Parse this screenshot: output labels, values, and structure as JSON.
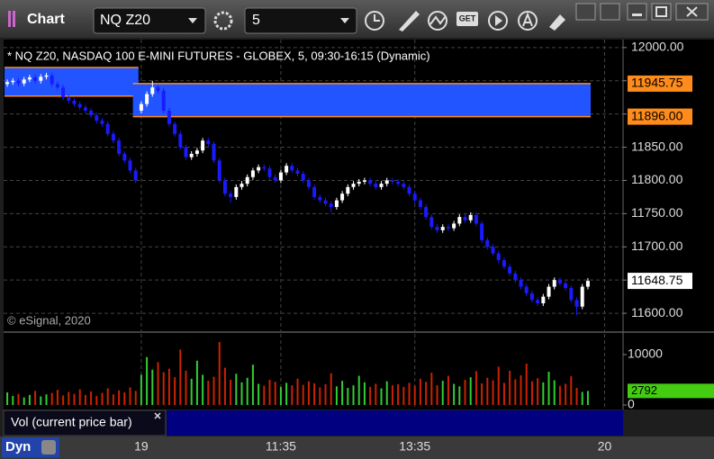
{
  "toolbar": {
    "title": "Chart",
    "symbol": "NQ Z20",
    "interval": "5",
    "get_label": "GET"
  },
  "footer": {
    "study": "Vol (current price bar)",
    "mode": "Dyn"
  },
  "chart_data": {
    "type": "candlestick",
    "title": "* NQ Z20, NASDAQ 100 E-MINI FUTURES - GLOBEX, 5, 09:30-16:15 (Dynamic)",
    "watermark": "© eSignal, 2020",
    "xlim": [
      -0.66,
      110.3
    ],
    "xticks": [
      {
        "value": 24,
        "label": "19"
      },
      {
        "value": 49,
        "label": "11:35"
      },
      {
        "value": 73,
        "label": "13:35"
      },
      {
        "value": 107,
        "label": "20"
      }
    ],
    "ylim": [
      11573,
      12012
    ],
    "yticks": [
      {
        "value": 11600,
        "label": "11600.00"
      },
      {
        "value": 11650,
        "label": "11650.00"
      },
      {
        "value": 11700,
        "label": "11700.00"
      },
      {
        "value": 11750,
        "label": "11750.00"
      },
      {
        "value": 11800,
        "label": "11800.00"
      },
      {
        "value": 11850,
        "label": "11850.00"
      },
      {
        "value": 11900,
        "label": "11900.00"
      },
      {
        "value": 11950,
        "label": "11950.00"
      },
      {
        "value": 12000,
        "label": "12000.00"
      }
    ],
    "grid": true,
    "up_color": "#ffffff",
    "down_color": "#1a1aff",
    "open": [
      11945,
      11948,
      11950,
      11946,
      11952,
      11955,
      11950,
      11956,
      11958,
      11945,
      11940,
      11925,
      11920,
      11915,
      11910,
      11905,
      11898,
      11890,
      11885,
      11870,
      11860,
      11840,
      11830,
      11815,
      11905,
      11915,
      11930,
      11940,
      11935,
      11905,
      11885,
      11870,
      11850,
      11835,
      11840,
      11845,
      11860,
      11855,
      11830,
      11800,
      11780,
      11775,
      11790,
      11795,
      11805,
      11815,
      11820,
      11818,
      11805,
      11800,
      11812,
      11822,
      11815,
      11810,
      11800,
      11790,
      11775,
      11770,
      11765,
      11760,
      11770,
      11780,
      11790,
      11795,
      11798,
      11800,
      11795,
      11790,
      11795,
      11800,
      11798,
      11795,
      11790,
      11780,
      11770,
      11760,
      11745,
      11730,
      11725,
      11730,
      11728,
      11735,
      11745,
      11740,
      11748,
      11735,
      11710,
      11700,
      11690,
      11680,
      11670,
      11660,
      11650,
      11640,
      11630,
      11620,
      11615,
      11625,
      11640,
      11650,
      11645,
      11638,
      11620,
      11610,
      11640
    ],
    "high": [
      11952,
      11954,
      11954,
      11956,
      11959,
      11959,
      11960,
      11962,
      11962,
      11949,
      11944,
      11929,
      11924,
      11919,
      11914,
      11909,
      11902,
      11894,
      11889,
      11874,
      11864,
      11844,
      11834,
      11819,
      11919,
      11934,
      11950,
      11944,
      11939,
      11909,
      11889,
      11874,
      11854,
      11844,
      11849,
      11864,
      11864,
      11859,
      11834,
      11804,
      11784,
      11794,
      11799,
      11809,
      11819,
      11824,
      11824,
      11822,
      11809,
      11816,
      11826,
      11826,
      11819,
      11814,
      11804,
      11794,
      11779,
      11774,
      11769,
      11774,
      11784,
      11794,
      11799,
      11802,
      11804,
      11804,
      11799,
      11799,
      11804,
      11804,
      11802,
      11799,
      11794,
      11784,
      11774,
      11764,
      11749,
      11734,
      11734,
      11734,
      11739,
      11749,
      11749,
      11752,
      11752,
      11739,
      11714,
      11704,
      11694,
      11684,
      11674,
      11664,
      11654,
      11644,
      11634,
      11624,
      11629,
      11644,
      11654,
      11654,
      11649,
      11642,
      11624,
      11644,
      11653
    ],
    "low": [
      11941,
      11944,
      11942,
      11942,
      11948,
      11946,
      11946,
      11952,
      11941,
      11936,
      11921,
      11916,
      11911,
      11906,
      11901,
      11894,
      11886,
      11881,
      11866,
      11856,
      11836,
      11826,
      11811,
      11796,
      11901,
      11911,
      11926,
      11931,
      11901,
      11881,
      11866,
      11846,
      11831,
      11831,
      11836,
      11841,
      11851,
      11826,
      11796,
      11776,
      11766,
      11771,
      11786,
      11791,
      11801,
      11811,
      11814,
      11801,
      11796,
      11796,
      11808,
      11811,
      11806,
      11796,
      11786,
      11771,
      11766,
      11761,
      11752,
      11756,
      11766,
      11776,
      11786,
      11791,
      11794,
      11791,
      11786,
      11786,
      11791,
      11794,
      11791,
      11786,
      11776,
      11766,
      11756,
      11741,
      11726,
      11721,
      11721,
      11724,
      11724,
      11731,
      11736,
      11736,
      11731,
      11706,
      11696,
      11686,
      11676,
      11666,
      11656,
      11646,
      11636,
      11626,
      11616,
      11611,
      11611,
      11621,
      11636,
      11641,
      11634,
      11616,
      11597,
      11606,
      11636
    ],
    "close": [
      11948,
      11950,
      11946,
      11952,
      11955,
      11950,
      11956,
      11958,
      11945,
      11940,
      11925,
      11920,
      11915,
      11910,
      11905,
      11898,
      11890,
      11885,
      11870,
      11860,
      11840,
      11830,
      11815,
      11800,
      11915,
      11930,
      11940,
      11935,
      11905,
      11885,
      11870,
      11850,
      11835,
      11840,
      11845,
      11860,
      11855,
      11830,
      11800,
      11780,
      11775,
      11790,
      11795,
      11805,
      11815,
      11820,
      11818,
      11805,
      11800,
      11812,
      11822,
      11815,
      11810,
      11800,
      11790,
      11775,
      11770,
      11765,
      11760,
      11770,
      11780,
      11790,
      11795,
      11798,
      11800,
      11795,
      11790,
      11795,
      11800,
      11798,
      11795,
      11790,
      11780,
      11770,
      11760,
      11745,
      11730,
      11725,
      11730,
      11728,
      11735,
      11745,
      11740,
      11748,
      11735,
      11710,
      11700,
      11690,
      11680,
      11670,
      11660,
      11650,
      11640,
      11630,
      11620,
      11615,
      11625,
      11640,
      11650,
      11645,
      11638,
      11620,
      11610,
      11640,
      11648.75
    ],
    "zones": [
      {
        "top": 11970,
        "bottom": 11927,
        "start": 0,
        "end": 23
      },
      {
        "top": {
          "value": 11945.75,
          "label": "11945.75"
        },
        "bottom": {
          "value": 11896.0,
          "label": "11896.00"
        },
        "start": 23,
        "end": 104
      }
    ],
    "zone_color": "#2255ff",
    "zone_line_color": "#ff8c1a",
    "volume": {
      "name": "Vol (current price bar)",
      "ylim": [
        -893,
        14107
      ],
      "yticks": [
        0,
        10000
      ],
      "up_color": "#33cc33",
      "down_color": "#cc2200",
      "values": [
        2500,
        1800,
        2200,
        1500,
        2000,
        2800,
        1700,
        2100,
        2400,
        3000,
        1900,
        2600,
        2200,
        3100,
        2000,
        2700,
        1800,
        2400,
        3300,
        2100,
        2900,
        2500,
        3500,
        2800,
        6000,
        9500,
        7000,
        8500,
        6500,
        7200,
        5500,
        11000,
        6800,
        5200,
        8800,
        6000,
        4800,
        5600,
        12500,
        7400,
        5000,
        6200,
        4500,
        5400,
        8000,
        4200,
        3800,
        5000,
        4600,
        3600,
        4400,
        3900,
        5200,
        4000,
        4700,
        4300,
        3500,
        4100,
        6300,
        3700,
        4800,
        3400,
        3900,
        5800,
        4500,
        3600,
        4200,
        3300,
        4700,
        3900,
        4100,
        3600,
        4400,
        3800,
        5200,
        4600,
        6400,
        3900,
        4800,
        5800,
        4200,
        3700,
        5000,
        5500,
        6700,
        4300,
        5400,
        4900,
        7600,
        4400,
        6800,
        5100,
        5900,
        8200,
        4700,
        5300,
        4500,
        6600,
        4900,
        3800,
        4200,
        5700,
        3400,
        2600,
        2792
      ]
    }
  }
}
